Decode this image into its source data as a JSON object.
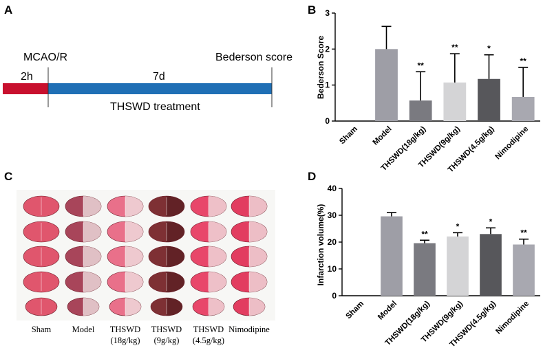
{
  "panels": {
    "a": {
      "letter": "A",
      "mcao_label": "MCAO/R",
      "score_label": "Bederson score",
      "phase1_label": "2h",
      "phase2_label": "7d",
      "treatment_label": "THSWD treatment",
      "colors": {
        "phase1": "#c8102e",
        "phase2": "#1f6fb5"
      }
    },
    "c": {
      "letter": "C",
      "groups": [
        {
          "line1": "Sham",
          "line2": ""
        },
        {
          "line1": "Model",
          "line2": ""
        },
        {
          "line1": "THSWD",
          "line2": "(18g/kg)"
        },
        {
          "line1": "THSWD",
          "line2": "(9g/kg)"
        },
        {
          "line1": "THSWD",
          "line2": "(4.5g/kg)"
        },
        {
          "line1": "Nimodipine",
          "line2": ""
        }
      ]
    }
  },
  "chart_data": [
    {
      "panel": "B",
      "type": "bar",
      "title": "",
      "xlabel": "",
      "ylabel": "Bederson Score",
      "ylim": [
        0,
        3
      ],
      "yticks": [
        0,
        1,
        2,
        3
      ],
      "categories": [
        "Sham",
        "Model",
        "THSWD(18g/kg)",
        "THSWD(9g/kg)",
        "THSWD(4.5g/kg)",
        "Nimodipine"
      ],
      "values": [
        0,
        2.0,
        0.57,
        1.07,
        1.17,
        0.67
      ],
      "errors": [
        0,
        0.63,
        0.8,
        0.8,
        0.67,
        0.82
      ],
      "significance": [
        "",
        "",
        "**",
        "**",
        "*",
        "**"
      ],
      "colors": [
        "#9e9ea6",
        "#9e9ea6",
        "#7a7a80",
        "#d4d4d6",
        "#57575b",
        "#a8a8b0"
      ]
    },
    {
      "panel": "D",
      "type": "bar",
      "title": "",
      "xlabel": "",
      "ylabel": "Infarction volume(%)",
      "ylim": [
        0,
        40
      ],
      "yticks": [
        0,
        10,
        20,
        30,
        40
      ],
      "categories": [
        "Sham",
        "Model",
        "THSWD(18g/kg)",
        "THSWD(9g/kg)",
        "THSWD(4.5g/kg)",
        "Nimodipine"
      ],
      "values": [
        0,
        29.6,
        19.6,
        22.1,
        23.0,
        19.1
      ],
      "errors": [
        0,
        1.4,
        1.1,
        1.4,
        2.3,
        2.0
      ],
      "significance": [
        "",
        "",
        "**",
        "*",
        "*",
        "**"
      ],
      "colors": [
        "#9e9ea6",
        "#9e9ea6",
        "#7a7a80",
        "#d4d4d6",
        "#57575b",
        "#a8a8b0"
      ]
    }
  ]
}
